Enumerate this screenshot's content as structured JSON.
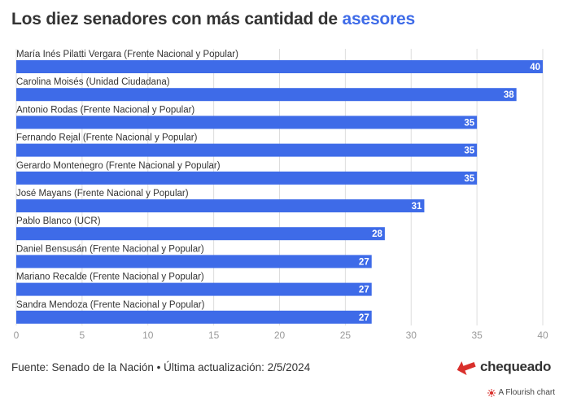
{
  "title": {
    "prefix": "Los diez senadores con más cantidad de",
    "highlight": "asesores"
  },
  "colors": {
    "bar": "#3e6be8",
    "highlight": "#3e6be8",
    "gridline": "#dddddd",
    "axis_text": "#999999",
    "logo_red": "#d9302c"
  },
  "chart_data": {
    "type": "bar",
    "orientation": "horizontal",
    "categories": [
      "María Inés Pilatti Vergara (Frente Nacional y Popular)",
      "Carolina Moisés (Unidad Ciudadana)",
      "Antonio Rodas (Frente Nacional y Popular)",
      "Fernando Rejal (Frente Nacional y Popular)",
      "Gerardo Montenegro (Frente Nacional y Popular)",
      "José Mayans (Frente Nacional y Popular)",
      "Pablo Blanco (UCR)",
      "Daniel Bensusán (Frente Nacional y Popular)",
      "Mariano Recalde (Frente Nacional y Popular)",
      "Sandra Mendoza (Frente Nacional y Popular)"
    ],
    "values": [
      40,
      38,
      35,
      35,
      35,
      31,
      28,
      27,
      27,
      27
    ],
    "xlim": [
      0,
      40
    ],
    "xticks": [
      0,
      5,
      10,
      15,
      20,
      25,
      30,
      35,
      40
    ],
    "title": "Los diez senadores con más cantidad de asesores",
    "xlabel": "",
    "ylabel": ""
  },
  "footer": {
    "source": "Fuente: Senado de la Nación • Última actualización: 2/5/2024",
    "logo": "chequeado",
    "flourish": "A Flourish chart"
  }
}
